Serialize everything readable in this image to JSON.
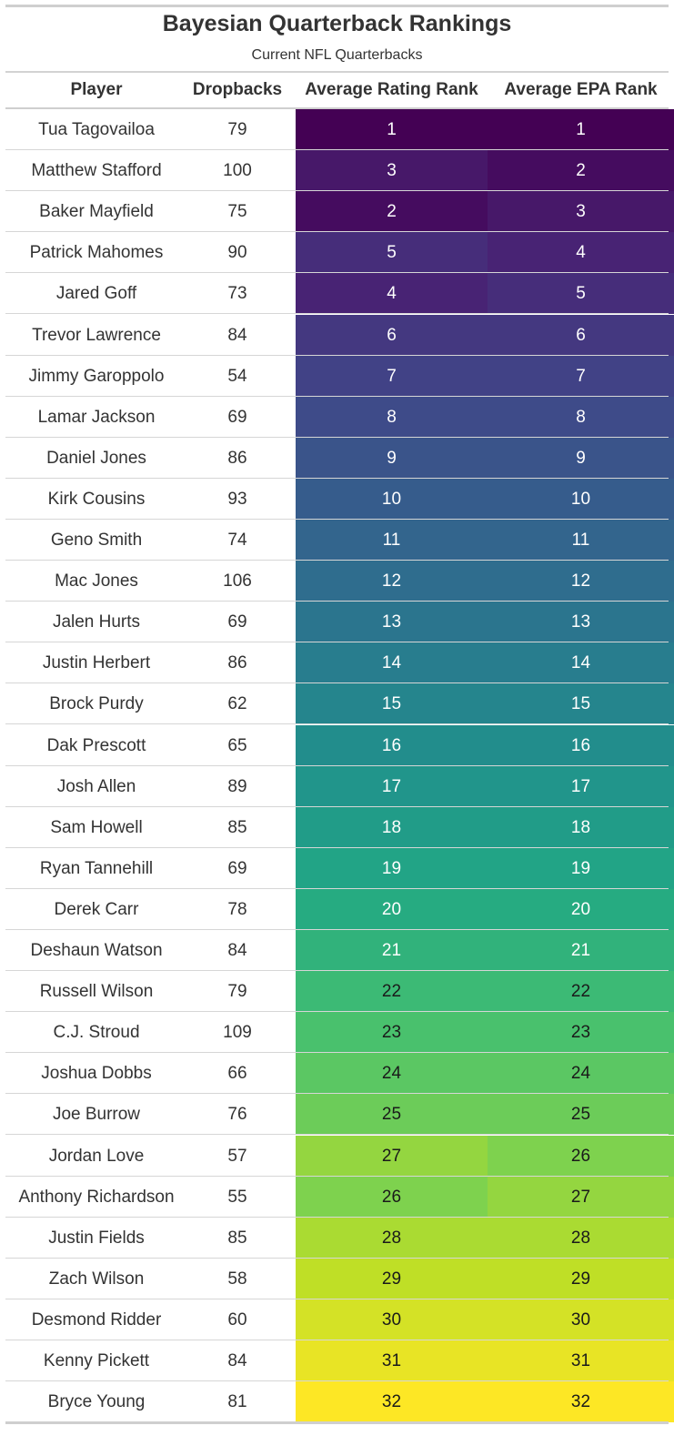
{
  "title": "Bayesian Quarterback Rankings",
  "subtitle": "Current NFL Quarterbacks",
  "chart_data": {
    "type": "table",
    "columns": [
      "Player",
      "Dropbacks",
      "Average Rating Rank",
      "Average EPA Rank"
    ],
    "rows": [
      {
        "player": "Tua Tagovailoa",
        "dropbacks": 79,
        "rating_rank": 1,
        "epa_rank": 1
      },
      {
        "player": "Matthew Stafford",
        "dropbacks": 100,
        "rating_rank": 3,
        "epa_rank": 2
      },
      {
        "player": "Baker Mayfield",
        "dropbacks": 75,
        "rating_rank": 2,
        "epa_rank": 3
      },
      {
        "player": "Patrick Mahomes",
        "dropbacks": 90,
        "rating_rank": 5,
        "epa_rank": 4
      },
      {
        "player": "Jared Goff",
        "dropbacks": 73,
        "rating_rank": 4,
        "epa_rank": 5
      },
      {
        "player": "Trevor Lawrence",
        "dropbacks": 84,
        "rating_rank": 6,
        "epa_rank": 6
      },
      {
        "player": "Jimmy Garoppolo",
        "dropbacks": 54,
        "rating_rank": 7,
        "epa_rank": 7
      },
      {
        "player": "Lamar Jackson",
        "dropbacks": 69,
        "rating_rank": 8,
        "epa_rank": 8
      },
      {
        "player": "Daniel Jones",
        "dropbacks": 86,
        "rating_rank": 9,
        "epa_rank": 9
      },
      {
        "player": "Kirk Cousins",
        "dropbacks": 93,
        "rating_rank": 10,
        "epa_rank": 10
      },
      {
        "player": "Geno Smith",
        "dropbacks": 74,
        "rating_rank": 11,
        "epa_rank": 11
      },
      {
        "player": "Mac Jones",
        "dropbacks": 106,
        "rating_rank": 12,
        "epa_rank": 12
      },
      {
        "player": "Jalen Hurts",
        "dropbacks": 69,
        "rating_rank": 13,
        "epa_rank": 13
      },
      {
        "player": "Justin Herbert",
        "dropbacks": 86,
        "rating_rank": 14,
        "epa_rank": 14
      },
      {
        "player": "Brock Purdy",
        "dropbacks": 62,
        "rating_rank": 15,
        "epa_rank": 15
      },
      {
        "player": "Dak Prescott",
        "dropbacks": 65,
        "rating_rank": 16,
        "epa_rank": 16
      },
      {
        "player": "Josh Allen",
        "dropbacks": 89,
        "rating_rank": 17,
        "epa_rank": 17
      },
      {
        "player": "Sam Howell",
        "dropbacks": 85,
        "rating_rank": 18,
        "epa_rank": 18
      },
      {
        "player": "Ryan Tannehill",
        "dropbacks": 69,
        "rating_rank": 19,
        "epa_rank": 19
      },
      {
        "player": "Derek Carr",
        "dropbacks": 78,
        "rating_rank": 20,
        "epa_rank": 20
      },
      {
        "player": "Deshaun Watson",
        "dropbacks": 84,
        "rating_rank": 21,
        "epa_rank": 21
      },
      {
        "player": "Russell Wilson",
        "dropbacks": 79,
        "rating_rank": 22,
        "epa_rank": 22
      },
      {
        "player": "C.J. Stroud",
        "dropbacks": 109,
        "rating_rank": 23,
        "epa_rank": 23
      },
      {
        "player": "Joshua Dobbs",
        "dropbacks": 66,
        "rating_rank": 24,
        "epa_rank": 24
      },
      {
        "player": "Joe Burrow",
        "dropbacks": 76,
        "rating_rank": 25,
        "epa_rank": 25
      },
      {
        "player": "Jordan Love",
        "dropbacks": 57,
        "rating_rank": 27,
        "epa_rank": 26
      },
      {
        "player": "Anthony Richardson",
        "dropbacks": 55,
        "rating_rank": 26,
        "epa_rank": 27
      },
      {
        "player": "Justin Fields",
        "dropbacks": 85,
        "rating_rank": 28,
        "epa_rank": 28
      },
      {
        "player": "Zach Wilson",
        "dropbacks": 58,
        "rating_rank": 29,
        "epa_rank": 29
      },
      {
        "player": "Desmond Ridder",
        "dropbacks": 60,
        "rating_rank": 30,
        "epa_rank": 30
      },
      {
        "player": "Kenny Pickett",
        "dropbacks": 84,
        "rating_rank": 31,
        "epa_rank": 31
      },
      {
        "player": "Bryce Young",
        "dropbacks": 81,
        "rating_rank": 32,
        "epa_rank": 32
      }
    ],
    "color_scale": "viridis",
    "color_domain": [
      1,
      32
    ]
  }
}
